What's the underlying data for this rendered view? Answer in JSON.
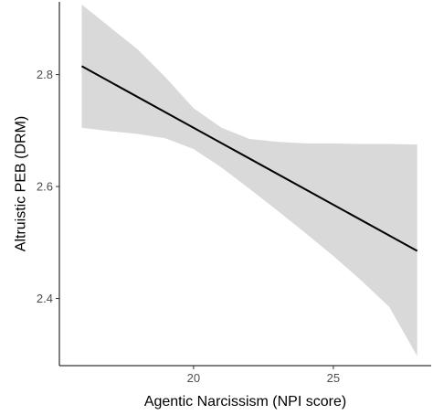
{
  "chart_data": {
    "type": "line",
    "title": "",
    "xlabel": "Agentic Narcissism (NPI score)",
    "ylabel": "Altruistic PEB (DRM)",
    "xlim": [
      15.2,
      28.5
    ],
    "ylim": [
      2.28,
      2.93
    ],
    "x_ticks": [
      20,
      25
    ],
    "y_ticks": [
      2.4,
      2.6,
      2.8
    ],
    "x_tick_labels": [
      "20",
      "25"
    ],
    "y_tick_labels": [
      "2.4",
      "2.6",
      "2.8"
    ],
    "grid": false,
    "legend": "none",
    "series": [
      {
        "x": [
          16,
          28
        ],
        "y": [
          2.815,
          2.485
        ]
      }
    ],
    "confidence_band": {
      "x": [
        16,
        17,
        18,
        19,
        20,
        21,
        22,
        23,
        24,
        25,
        26,
        27,
        28
      ],
      "lower": [
        2.705,
        2.699,
        2.694,
        2.686,
        2.667,
        2.634,
        2.596,
        2.557,
        2.517,
        2.476,
        2.432,
        2.385,
        2.297
      ],
      "upper": [
        2.925,
        2.885,
        2.845,
        2.795,
        2.74,
        2.705,
        2.685,
        2.68,
        2.677,
        2.677,
        2.676,
        2.676,
        2.675
      ]
    },
    "colors": {
      "line": "#000000",
      "band": "#d9d9d9",
      "axis": "#000000",
      "tick_text": "#4d4d4d"
    }
  }
}
